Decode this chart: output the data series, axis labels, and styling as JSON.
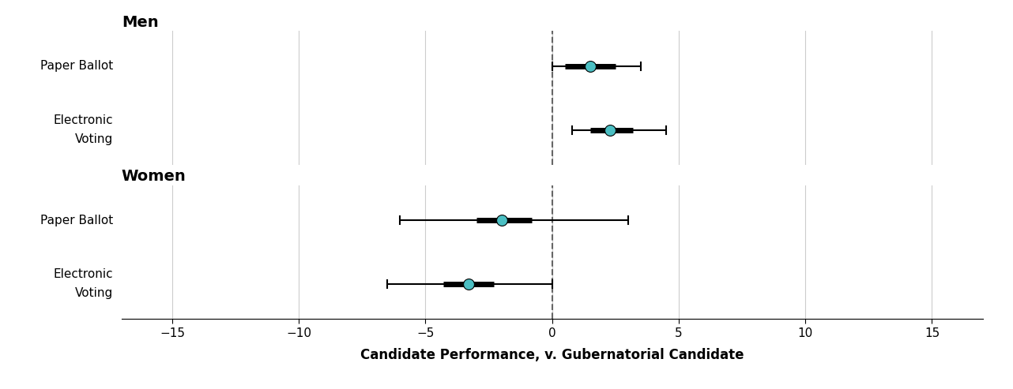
{
  "xlabel": "Candidate Performance, v. Gubernatorial Candidate",
  "xlim": [
    -17,
    17
  ],
  "xticks": [
    -15,
    -10,
    -5,
    0,
    5,
    10,
    15
  ],
  "groups": [
    {
      "title": "Men",
      "rows": [
        {
          "label_line1": "Paper Ballot",
          "label_line2": "",
          "mean": 1.5,
          "ci_outer_low": 0.0,
          "ci_outer_high": 3.5,
          "ci_inner_low": 0.5,
          "ci_inner_high": 2.5
        },
        {
          "label_line1": "Electronic",
          "label_line2": "Voting",
          "mean": 2.3,
          "ci_outer_low": 0.8,
          "ci_outer_high": 4.5,
          "ci_inner_low": 1.5,
          "ci_inner_high": 3.2
        }
      ]
    },
    {
      "title": "Women",
      "rows": [
        {
          "label_line1": "Paper Ballot",
          "label_line2": "",
          "mean": -2.0,
          "ci_outer_low": -6.0,
          "ci_outer_high": 3.0,
          "ci_inner_low": -3.0,
          "ci_inner_high": -0.8
        },
        {
          "label_line1": "Electronic",
          "label_line2": "Voting",
          "mean": -3.3,
          "ci_outer_low": -6.5,
          "ci_outer_high": 0.0,
          "ci_inner_low": -4.3,
          "ci_inner_high": -2.3
        }
      ]
    }
  ],
  "dot_color": "#4BBFC3",
  "dot_edgecolor": "#000000",
  "line_color": "#000000",
  "dashed_color": "#666666",
  "background_color": "#ffffff",
  "grid_color": "#cccccc",
  "title_fontsize": 14,
  "label_fontsize": 11,
  "xlabel_fontsize": 12
}
